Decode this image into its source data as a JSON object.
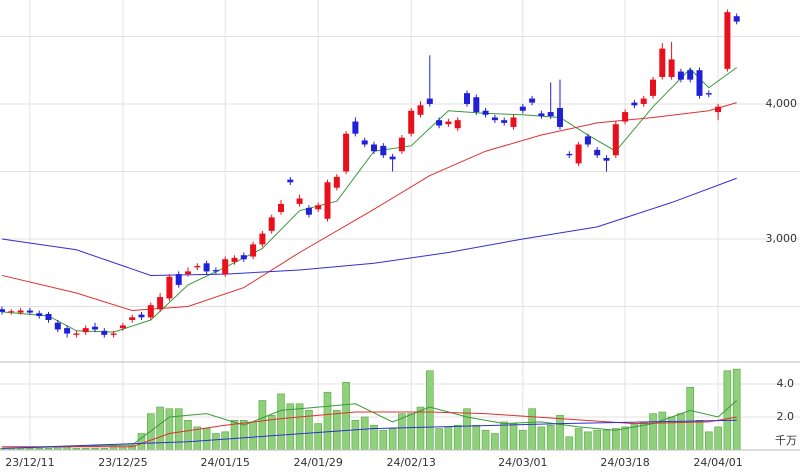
{
  "chart_data": [
    {
      "type": "candlestick",
      "categories": [
        null,
        null,
        null,
        "23/12/11",
        null,
        null,
        null,
        null,
        null,
        null,
        null,
        null,
        null,
        "23/12/25",
        null,
        null,
        null,
        null,
        null,
        null,
        null,
        null,
        null,
        null,
        "24/01/15",
        null,
        null,
        null,
        null,
        null,
        null,
        null,
        null,
        null,
        "24/01/29",
        null,
        null,
        null,
        null,
        null,
        null,
        null,
        null,
        null,
        "24/02/13",
        null,
        null,
        null,
        null,
        null,
        null,
        null,
        null,
        null,
        null,
        null,
        "24/03/01",
        null,
        null,
        null,
        null,
        null,
        null,
        null,
        null,
        null,
        null,
        "24/03/18",
        null,
        null,
        null,
        null,
        null,
        null,
        null,
        null,
        null,
        "24/04/01",
        null,
        null
      ],
      "open": [
        2480,
        2460,
        2455,
        2470,
        2450,
        2445,
        2380,
        2340,
        2290,
        2310,
        2350,
        2320,
        2290,
        2340,
        2400,
        2440,
        2420,
        2480,
        2560,
        2740,
        2740,
        2790,
        2820,
        2770,
        2740,
        2830,
        2880,
        2870,
        2960,
        3060,
        3200,
        3440,
        3260,
        3230,
        3220,
        3150,
        3380,
        3500,
        3870,
        3730,
        3700,
        3690,
        3610,
        3650,
        3780,
        3920,
        4040,
        3880,
        3850,
        3820,
        4080,
        4050,
        3950,
        3900,
        3880,
        3830,
        3980,
        4040,
        3930,
        3940,
        3970,
        3630,
        3560,
        3760,
        3660,
        3600,
        3620,
        3870,
        4010,
        4000,
        4060,
        4200,
        4200,
        4240,
        4250,
        4250,
        4080,
        3940,
        4260,
        4650
      ],
      "high": [
        2500,
        2480,
        2490,
        2490,
        2470,
        2460,
        2400,
        2360,
        2320,
        2360,
        2380,
        2340,
        2320,
        2380,
        2440,
        2460,
        2530,
        2600,
        2740,
        2760,
        2790,
        2820,
        2840,
        2790,
        2870,
        2880,
        2900,
        2980,
        3060,
        3180,
        3290,
        3460,
        3330,
        3250,
        3270,
        3440,
        3480,
        3800,
        3900,
        3750,
        3720,
        3710,
        3630,
        3770,
        3970,
        4020,
        4360,
        3900,
        3890,
        3900,
        4100,
        4070,
        3970,
        3920,
        3900,
        3920,
        4000,
        4060,
        3950,
        4160,
        4180,
        3650,
        3720,
        3780,
        3680,
        3620,
        3870,
        3960,
        4030,
        4060,
        4200,
        4450,
        4460,
        4260,
        4270,
        4270,
        4100,
        4000,
        4700,
        4670
      ],
      "low": [
        2440,
        2440,
        2440,
        2440,
        2410,
        2380,
        2310,
        2270,
        2270,
        2290,
        2310,
        2270,
        2270,
        2320,
        2380,
        2400,
        2400,
        2460,
        2540,
        2640,
        2720,
        2770,
        2740,
        2740,
        2720,
        2810,
        2830,
        2850,
        2940,
        3040,
        3180,
        3400,
        3240,
        3160,
        3200,
        3130,
        3360,
        3480,
        3760,
        3680,
        3630,
        3600,
        3500,
        3630,
        3760,
        3900,
        3980,
        3820,
        3830,
        3800,
        3980,
        3920,
        3900,
        3860,
        3840,
        3810,
        3930,
        3990,
        3890,
        3890,
        3810,
        3600,
        3540,
        3680,
        3600,
        3500,
        3600,
        3850,
        3970,
        3980,
        4040,
        4180,
        4180,
        4160,
        4160,
        4040,
        4050,
        3880,
        4240,
        4590
      ],
      "close": [
        2460,
        2465,
        2470,
        2455,
        2430,
        2400,
        2330,
        2300,
        2300,
        2340,
        2330,
        2290,
        2300,
        2360,
        2420,
        2420,
        2510,
        2570,
        2720,
        2660,
        2760,
        2800,
        2760,
        2760,
        2850,
        2860,
        2850,
        2960,
        3040,
        3160,
        3260,
        3420,
        3300,
        3180,
        3250,
        3420,
        3460,
        3780,
        3780,
        3700,
        3650,
        3620,
        3590,
        3750,
        3950,
        3990,
        4000,
        3840,
        3870,
        3880,
        4000,
        3940,
        3920,
        3880,
        3860,
        3900,
        3950,
        4010,
        3910,
        3910,
        3830,
        3620,
        3700,
        3700,
        3620,
        3580,
        3850,
        3940,
        3990,
        4040,
        4180,
        4410,
        4330,
        4180,
        4180,
        4060,
        4070,
        3980,
        4680,
        4610
      ],
      "up_color": "#e8101c",
      "down_color": "#2020d8",
      "lines": [
        {
          "color": "#3a9a3a",
          "x": [
            0,
            5,
            8,
            12,
            16,
            20,
            24,
            28,
            32,
            36,
            40,
            44,
            48,
            52,
            56,
            60,
            63,
            66,
            70,
            74,
            76,
            79
          ],
          "values": [
            2460,
            2430,
            2320,
            2310,
            2400,
            2660,
            2790,
            2930,
            3210,
            3280,
            3650,
            3690,
            3950,
            3930,
            3920,
            3900,
            3770,
            3650,
            3980,
            4260,
            4120,
            4270
          ]
        },
        {
          "color": "#e03030",
          "x": [
            0,
            8,
            14,
            20,
            26,
            32,
            40,
            46,
            52,
            58,
            64,
            70,
            76,
            79
          ],
          "values": [
            2730,
            2600,
            2470,
            2500,
            2640,
            2900,
            3220,
            3470,
            3650,
            3770,
            3860,
            3900,
            3950,
            4010
          ]
        },
        {
          "color": "#3030d0",
          "x": [
            0,
            8,
            16,
            24,
            32,
            40,
            48,
            56,
            64,
            72,
            79
          ],
          "values": [
            3000,
            2920,
            2730,
            2740,
            2770,
            2820,
            2900,
            3000,
            3090,
            3270,
            3450
          ]
        }
      ],
      "ylim": [
        2089,
        4770
      ],
      "ygrid": [
        2500,
        3000,
        3500,
        4000,
        4500
      ],
      "yticks": [
        {
          "value": 3000,
          "label": "3,000"
        },
        {
          "value": 4000,
          "label": "4,000"
        }
      ]
    },
    {
      "type": "bar",
      "values": [
        0.1,
        0.1,
        0.1,
        0.1,
        0.1,
        0.1,
        0.2,
        0.2,
        0.1,
        0.1,
        0.1,
        0.1,
        0.2,
        0.2,
        0.3,
        1.0,
        2.2,
        2.6,
        2.5,
        2.5,
        1.8,
        1.4,
        1.3,
        1.0,
        1.1,
        1.8,
        1.8,
        1.7,
        3.0,
        2.1,
        3.4,
        2.8,
        2.8,
        2.4,
        1.6,
        3.5,
        2.4,
        4.1,
        1.8,
        2.0,
        1.5,
        1.2,
        1.3,
        2.2,
        2.2,
        2.6,
        4.8,
        1.3,
        1.4,
        1.5,
        2.5,
        1.5,
        1.2,
        1.0,
        1.7,
        1.6,
        1.2,
        2.5,
        1.4,
        1.5,
        2.1,
        0.8,
        1.3,
        1.1,
        1.2,
        1.2,
        1.3,
        1.4,
        1.6,
        1.7,
        2.2,
        2.3,
        2.0,
        2.2,
        3.8,
        1.8,
        1.1,
        1.4,
        4.8,
        4.9
      ],
      "color": "#8fd07a",
      "lines": [
        {
          "color": "#3a9a3a",
          "x": [
            0,
            14,
            18,
            22,
            26,
            30,
            34,
            38,
            42,
            46,
            50,
            54,
            58,
            62,
            66,
            70,
            74,
            77,
            79
          ],
          "values": [
            0.1,
            0.3,
            2.0,
            2.2,
            1.5,
            2.4,
            2.6,
            2.8,
            1.7,
            2.6,
            2.0,
            1.6,
            1.7,
            1.4,
            1.2,
            1.6,
            2.4,
            2.0,
            3.0
          ]
        },
        {
          "color": "#e03030",
          "x": [
            0,
            14,
            18,
            24,
            30,
            38,
            46,
            52,
            60,
            68,
            76,
            79
          ],
          "values": [
            0.2,
            0.2,
            1.0,
            1.5,
            1.9,
            2.3,
            2.3,
            2.2,
            1.9,
            1.6,
            1.7,
            2.0
          ]
        },
        {
          "color": "#3030d0",
          "x": [
            0,
            20,
            40,
            60,
            79
          ],
          "values": [
            0.1,
            0.5,
            1.3,
            1.6,
            1.8
          ]
        }
      ],
      "ylim": [
        0,
        5.33
      ],
      "yticks": [
        {
          "value": 2,
          "label": "2.0"
        },
        {
          "value": 4,
          "label": "4.0"
        }
      ],
      "unit": "千万"
    }
  ]
}
